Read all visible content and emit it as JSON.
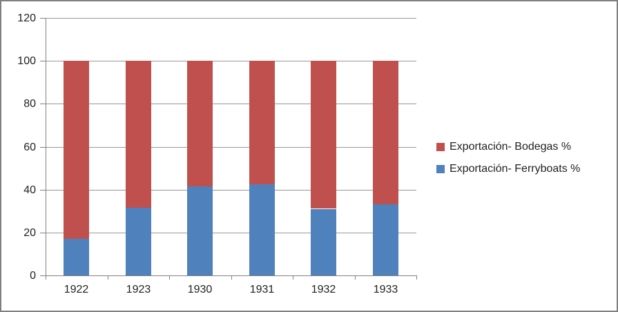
{
  "chart_data": {
    "type": "bar",
    "stacked": true,
    "title": "",
    "xlabel": "",
    "ylabel": "",
    "categories": [
      "1922",
      "1923",
      "1930",
      "1931",
      "1932",
      "1933"
    ],
    "series": [
      {
        "name": "Exportación- Ferryboats %",
        "color": "#4F81BD",
        "values": [
          17,
          31.5,
          41.5,
          42.5,
          31,
          33
        ]
      },
      {
        "name": "Exportación- Bodegas %",
        "color": "#C0504D",
        "values": [
          83,
          68.5,
          58.5,
          57.5,
          69,
          67
        ]
      }
    ],
    "stack_total": 100,
    "ylim": [
      0,
      120
    ],
    "yticks": [
      0,
      20,
      40,
      60,
      80,
      100,
      120
    ],
    "grid": true,
    "legend": {
      "position": "right",
      "order_top_to_bottom": [
        "Exportación- Bodegas %",
        "Exportación- Ferryboats %"
      ]
    }
  },
  "colors": {
    "bodegas_red": "#C0504D",
    "ferryboats_blue": "#4F81BD",
    "gridline": "#969696",
    "axis": "#808080",
    "chart_border": "#7F7F7F",
    "background": "#FFFFFF",
    "label_text": "#1F1F1F"
  }
}
